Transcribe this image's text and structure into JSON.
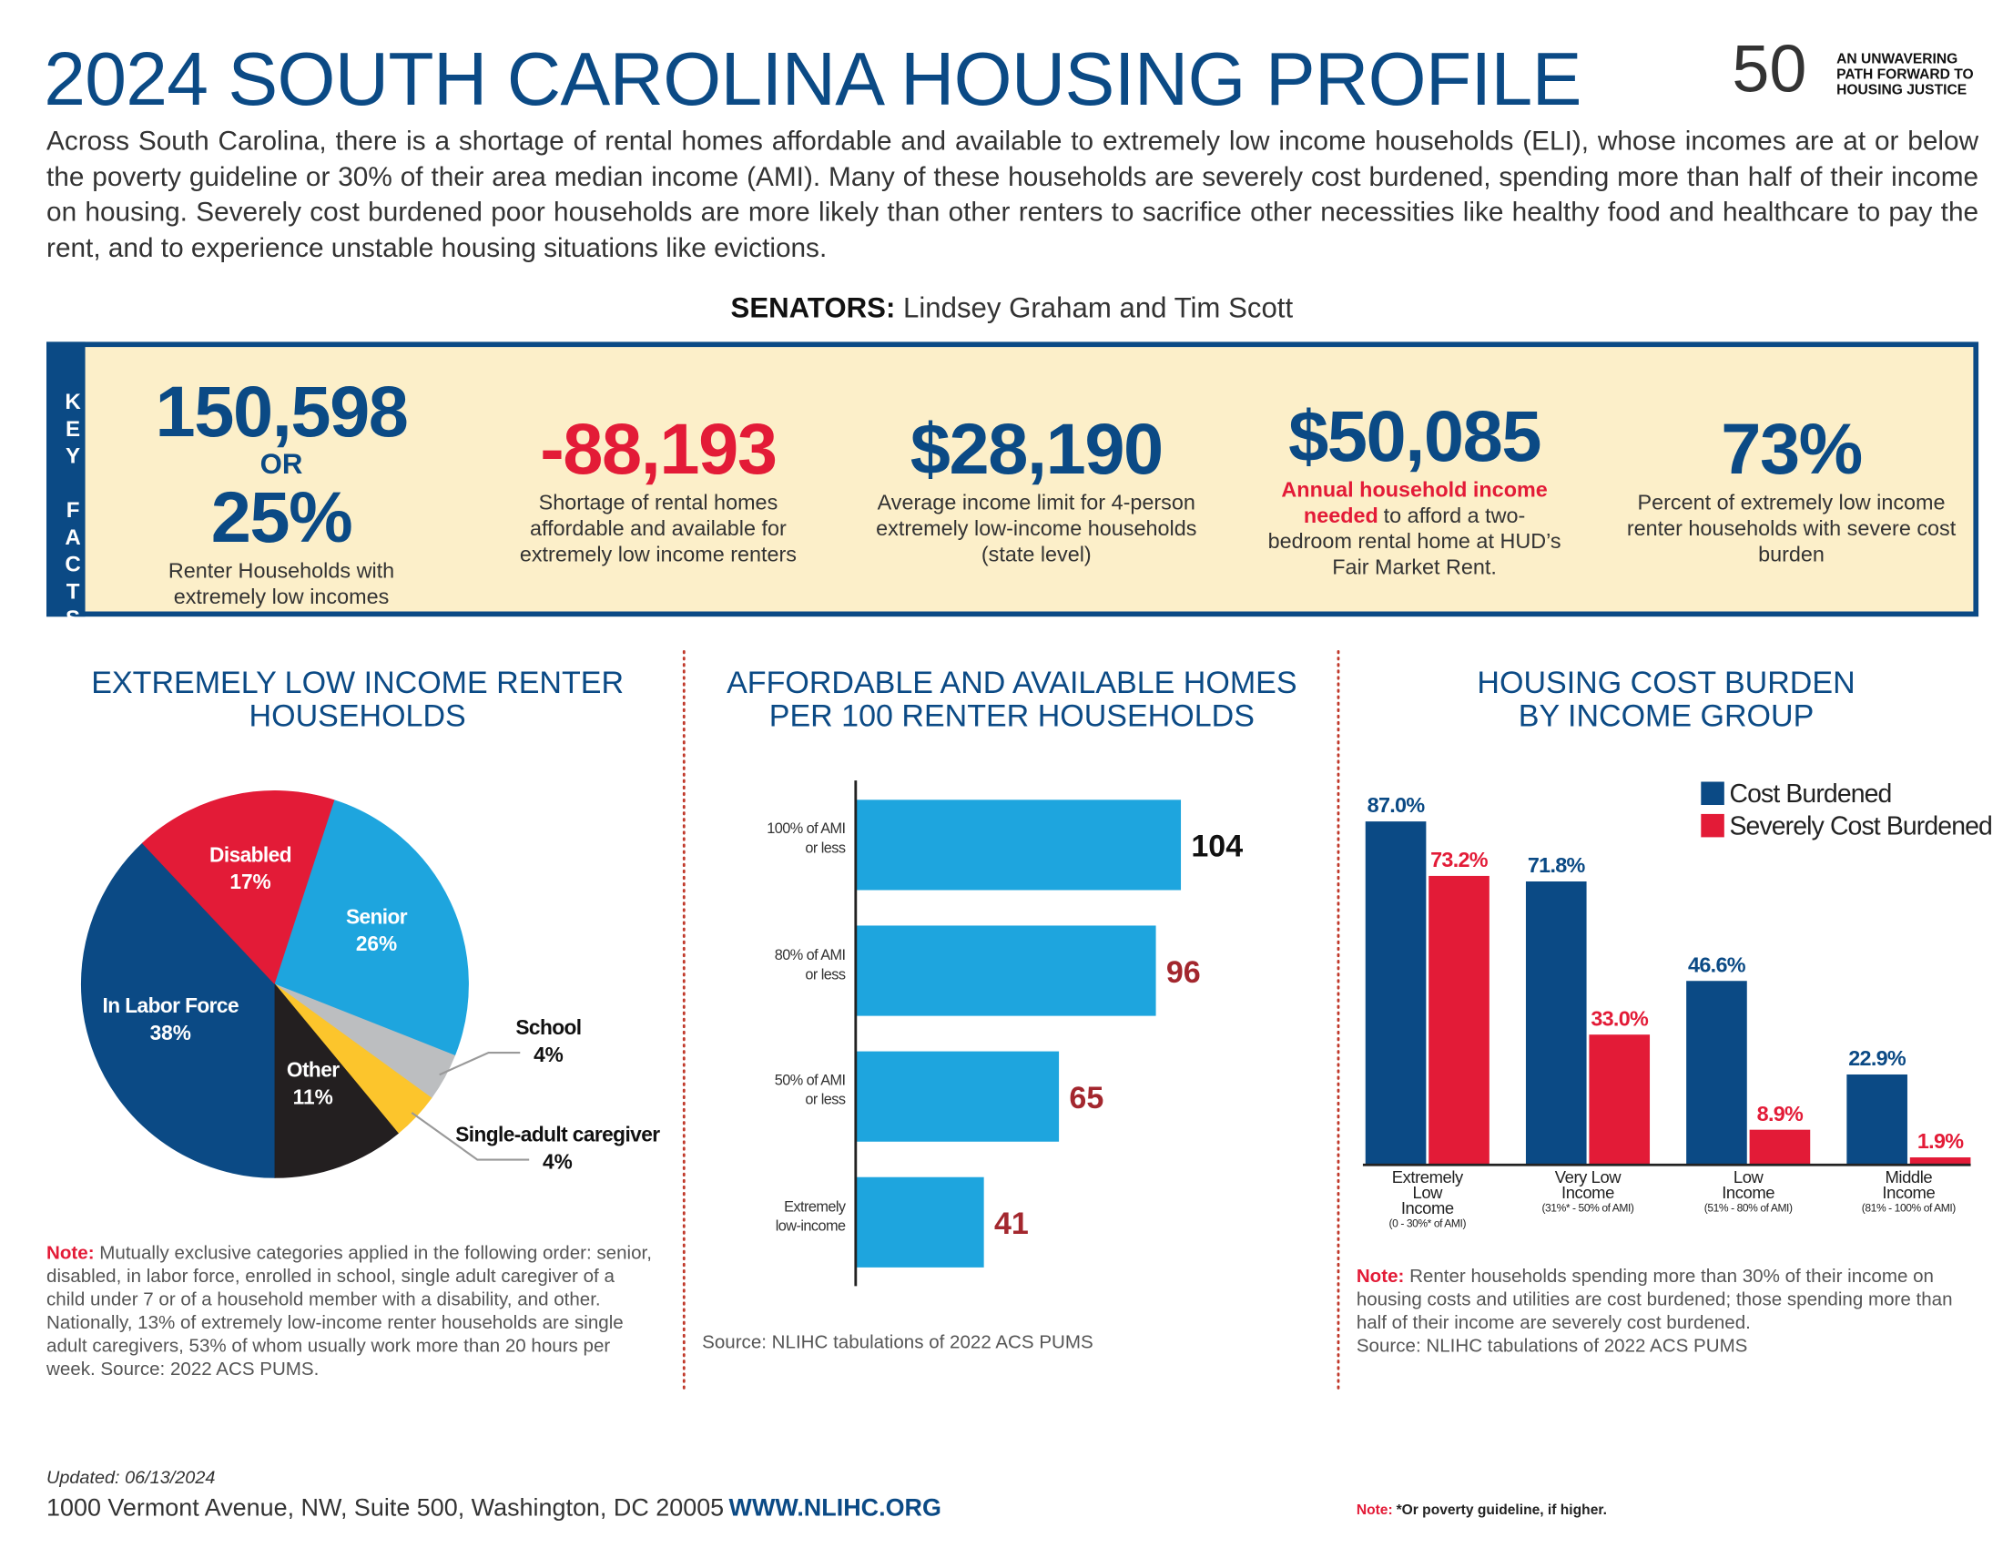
{
  "header": {
    "title": "2024 SOUTH CAROLINA HOUSING PROFILE",
    "logo_number": "50",
    "logo_lines": [
      "AN UNWAVERING",
      "PATH FORWARD TO",
      "HOUSING JUSTICE"
    ]
  },
  "intro": "Across South Carolina, there is a shortage of rental homes affordable and available to extremely low income households (ELI), whose incomes are at or below the poverty guideline or 30% of their area median income (AMI). Many of these households are severely cost burdened, spending more than half of their income on housing. Severely cost burdened poor households are more likely than other renters to sacrifice other necessities like healthy food and healthcare to pay the rent, and to experience unstable housing situations like evictions.",
  "senators": {
    "label": "SENATORS:",
    "names": "Lindsey Graham and Tim Scott"
  },
  "key_facts": {
    "label": "KEY FACTS",
    "facts": [
      {
        "value": "150,598",
        "connector": "OR",
        "value2": "25%",
        "label": "Renter Households with extremely low incomes"
      },
      {
        "value": "-88,193",
        "label": "Shortage of rental homes affordable and available for extremely low income renters"
      },
      {
        "value": "$28,190",
        "label": "Average income limit for 4-person extremely low-income households (state level)"
      },
      {
        "value": "$50,085",
        "emphasis": "Annual household income needed",
        "label": "to afford a two-bedroom rental home at HUD’s Fair Market Rent."
      },
      {
        "value": "73%",
        "label": "Percent of extremely low income renter households with severe cost burden"
      }
    ]
  },
  "chart_data": [
    {
      "type": "pie",
      "title": "EXTREMELY LOW INCOME RENTER HOUSEHOLDS",
      "categories": [
        "In Labor Force",
        "Disabled",
        "Senior",
        "School",
        "Single-adult caregiver",
        "Other"
      ],
      "values": [
        38,
        17,
        26,
        4,
        4,
        11
      ],
      "value_labels": [
        "38%",
        "17%",
        "26%",
        "4%",
        "4%",
        "11%"
      ],
      "colors": [
        "#0b4a85",
        "#e31b37",
        "#1ea5de",
        "#bcbec0",
        "#fcc52c",
        "#231f20"
      ],
      "note_label": "Note:",
      "note": "Mutually exclusive categories applied in the following order: senior, disabled, in labor force, enrolled in school, single adult caregiver of a child under 7 or of a household member with a disability, and other. Nationally, 13% of extremely low-income renter households are single adult caregivers, 53% of whom usually work more than 20 hours per week. Source: 2022 ACS PUMS."
    },
    {
      "type": "bar",
      "orientation": "horizontal",
      "title": "AFFORDABLE AND AVAILABLE HOMES PER 100 RENTER HOUSEHOLDS",
      "categories": [
        "100% of AMI or less",
        "80% of AMI or less",
        "50% of AMI or less",
        "Extremely low-income"
      ],
      "values": [
        104,
        96,
        65,
        41
      ],
      "color": "#1ea5de",
      "label_colors": [
        "#111111",
        "#a3272e",
        "#a3272e",
        "#a3272e"
      ],
      "xlim": [
        0,
        104
      ],
      "source": "Source: NLIHC tabulations of 2022 ACS PUMS"
    },
    {
      "type": "grouped_bar",
      "title": "HOUSING COST BURDEN BY INCOME GROUP",
      "categories": [
        "Extremely Low Income",
        "Very Low Income",
        "Low Income",
        "Middle Income"
      ],
      "category_notes": [
        "(0 - 30%* of AMI)",
        "(31%* - 50% of AMI)",
        "(51% - 80% of AMI)",
        "(81% - 100% of AMI)"
      ],
      "series": [
        {
          "name": "Cost Burdened",
          "color": "#0b4a85",
          "values": [
            87.0,
            71.8,
            46.6,
            22.9
          ],
          "value_labels": [
            "87.0%",
            "71.8%",
            "46.6%",
            "22.9%"
          ]
        },
        {
          "name": "Severely Cost Burdened",
          "color": "#e31b37",
          "values": [
            73.2,
            33.0,
            8.9,
            1.9
          ],
          "value_labels": [
            "73.2%",
            "33.0%",
            "8.9%",
            "1.9%"
          ]
        }
      ],
      "ylim": [
        0,
        100
      ],
      "legend": "upper right",
      "note_label": "Note:",
      "note": "Renter households spending more than 30% of their income on housing costs and utilities are cost burdened; those spending more than half of their income are severely cost burdened.",
      "source": "Source: NLIHC tabulations of 2022 ACS PUMS"
    }
  ],
  "footer": {
    "updated": "Updated: 06/13/2024",
    "address": "1000 Vermont Avenue, NW, Suite 500, Washington, DC 20005",
    "url": "WWW.NLIHC.ORG",
    "footnote_label": "Note:",
    "footnote": "*Or poverty guideline, if higher."
  }
}
